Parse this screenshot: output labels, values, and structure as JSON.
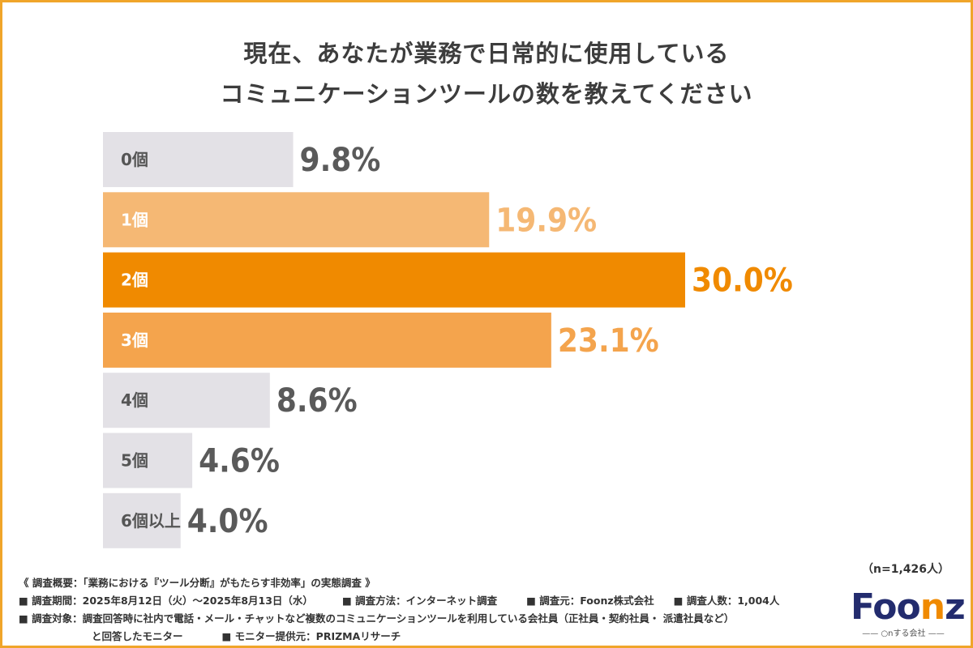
{
  "title_line1": "現在、あなたが業務で日常的に使用している",
  "title_line2": "コミュニケーションツールの数を教えてください",
  "chart_data": {
    "type": "bar",
    "orientation": "horizontal",
    "categories": [
      "0個",
      "1個",
      "2個",
      "3個",
      "4個",
      "5個",
      "6個以上"
    ],
    "values": [
      9.8,
      19.9,
      30.0,
      23.1,
      8.6,
      4.6,
      4.0
    ],
    "value_labels": [
      "9.8%",
      "19.9%",
      "30.0%",
      "23.1%",
      "8.6%",
      "4.6%",
      "4.0%"
    ],
    "xlim": [
      0,
      30
    ],
    "bar_colors": [
      "#e3e1e6",
      "#f5b874",
      "#f08a00",
      "#f4a44d",
      "#e3e1e6",
      "#e3e1e6",
      "#e3e1e6"
    ],
    "value_label_colors": [
      "#5a5a5a",
      "#f5b874",
      "#f08a00",
      "#f4a44d",
      "#5a5a5a",
      "#5a5a5a",
      "#5a5a5a"
    ],
    "category_label_colors": [
      "#555555",
      "#ffffff",
      "#ffffff",
      "#ffffff",
      "#555555",
      "#555555",
      "#555555"
    ],
    "grid": false,
    "legend": "none"
  },
  "sample_size": "（n=1,426人）",
  "notes": {
    "overview": "《 調査概要：「業務における『ツール分断』がもたらす非効率」の実態調査 》",
    "period": "■ 調査期間：2025年8月12日（火）〜2025年8月13日（水）",
    "method": "■ 調査方法：インターネット調査",
    "source": "■ 調査元：Foonz株式会社",
    "count": "■ 調査人数：1,004人",
    "target": "■ 調査対象：調査回答時に社内で電話・メール・チャットなど複数のコミュニケーションツールを利用している会社員（正社員・契約社員・ 派遣社員など）",
    "target_cont": "と回答したモニター",
    "provider": "■ モニター提供元：PRIZMAリサーチ"
  },
  "logo": {
    "word_a": "Foo",
    "word_b": "n",
    "word_c": "z",
    "tagline": "—— ○nする会社 ——"
  }
}
